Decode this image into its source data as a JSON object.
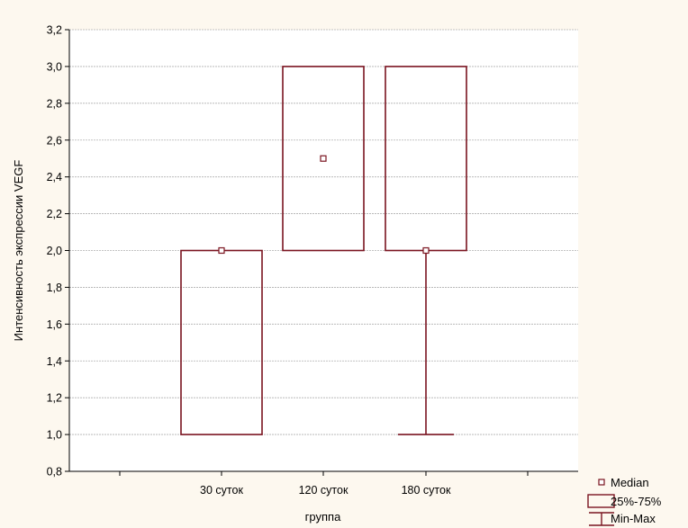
{
  "chart_data": {
    "type": "box",
    "title": "",
    "xlabel": "группа",
    "ylabel": "Интенсивность экспрессии VEGF",
    "ylim": [
      0.8,
      3.2
    ],
    "yticks": [
      "0,8",
      "1,0",
      "1,2",
      "1,4",
      "1,6",
      "1,8",
      "2,0",
      "2,2",
      "2,4",
      "2,6",
      "2,8",
      "3,0",
      "3,2"
    ],
    "categories": [
      "30 суток",
      "120 суток",
      "180 суток"
    ],
    "series": [
      {
        "category": "30 суток",
        "median": 2.0,
        "q1": 1.0,
        "q3": 2.0,
        "min": 1.0,
        "max": 2.0
      },
      {
        "category": "120 суток",
        "median": 2.5,
        "q1": 2.0,
        "q3": 3.0,
        "min": 2.0,
        "max": 3.0
      },
      {
        "category": "180 суток",
        "median": 2.0,
        "q1": 2.0,
        "q3": 3.0,
        "min": 1.0,
        "max": 3.0
      }
    ],
    "grid": true,
    "legend_position": "bottom-right",
    "legend": {
      "median": "Median",
      "box": "25%-75%",
      "whisker": "Min-Max"
    },
    "colors": {
      "background": "#fdf8ef",
      "plot_area": "#ffffff",
      "box_stroke": "#7a1420",
      "grid": "#b0b0b0",
      "axis": "#000000"
    }
  }
}
